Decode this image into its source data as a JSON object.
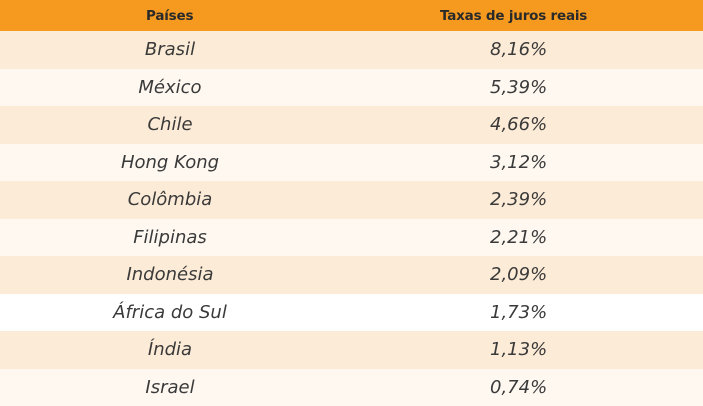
{
  "table": {
    "header": {
      "country": "Países",
      "rate": "Taxas de juros reais"
    },
    "rows": [
      {
        "country": "Brasil",
        "rate": "8,16%"
      },
      {
        "country": "México",
        "rate": "5,39%"
      },
      {
        "country": "Chile",
        "rate": "4,66%"
      },
      {
        "country": "Hong Kong",
        "rate": "3,12%"
      },
      {
        "country": "Colômbia",
        "rate": "2,39%"
      },
      {
        "country": "Filipinas",
        "rate": "2,21%"
      },
      {
        "country": "Indonésia",
        "rate": "2,09%"
      },
      {
        "country": "África do Sul",
        "rate": "1,73%"
      },
      {
        "country": "Índia",
        "rate": "1,13%"
      },
      {
        "country": "Israel",
        "rate": "0,74%"
      }
    ]
  },
  "colors": {
    "header": "#f59a1f",
    "row_shaded": "#fcebd6",
    "row_light": "#fef8f0"
  }
}
